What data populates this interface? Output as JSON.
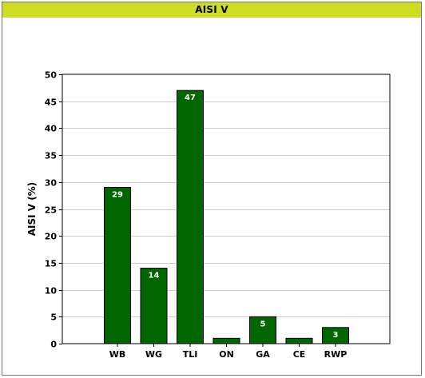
{
  "header": {
    "title": "AISI V"
  },
  "chart_data": {
    "type": "bar",
    "title": "AISI V",
    "xlabel": "",
    "ylabel": "AISI V  (%)",
    "categories": [
      "WB",
      "WG",
      "TLI",
      "ON",
      "GA",
      "CE",
      "RWP"
    ],
    "values": [
      29,
      14,
      47,
      1,
      5,
      1,
      3
    ],
    "data_labels": [
      "29",
      "14",
      "47",
      "",
      "5",
      "",
      "3"
    ],
    "ylim": [
      0,
      50
    ],
    "yticks": [
      0,
      5,
      10,
      15,
      20,
      25,
      30,
      35,
      40,
      45,
      50
    ],
    "grid": true,
    "bar_color": "#006600",
    "grid_color": "#cccccc",
    "legend": "none"
  }
}
